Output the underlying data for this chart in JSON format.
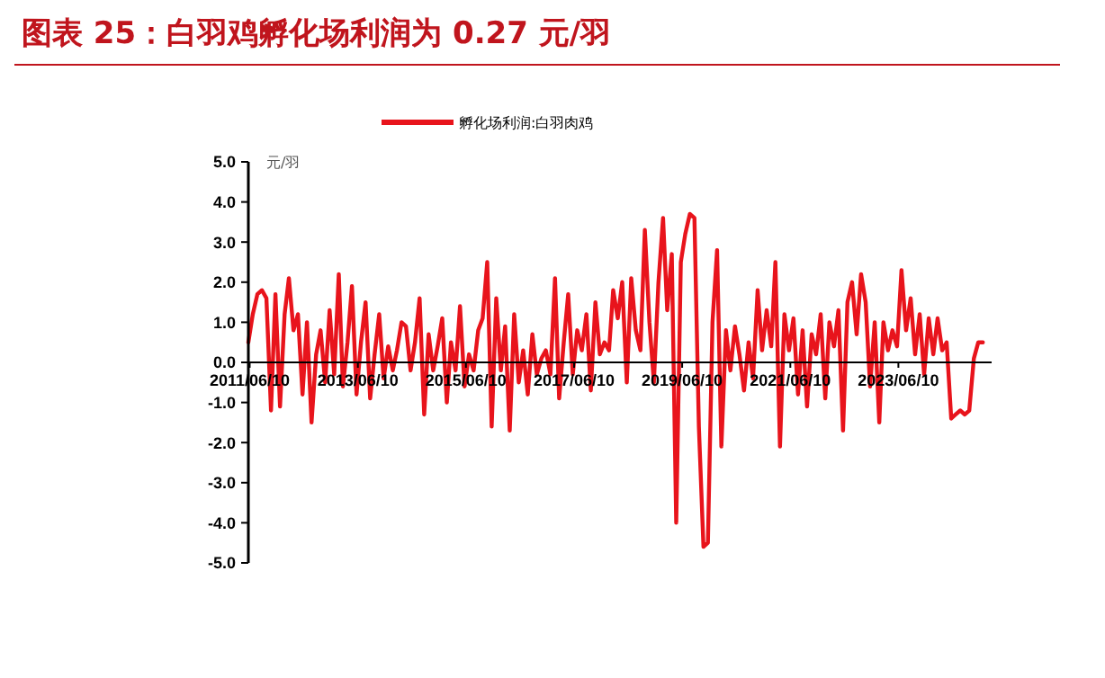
{
  "chart_data": {
    "type": "line",
    "title": "图表 25：白羽鸡孵化场利润为 0.27 元/羽",
    "ylabel": "元/羽",
    "legend": "top",
    "grid": false,
    "marker": "none",
    "line_style": "solid",
    "xlim": [
      "2011-06-01",
      "2025-03-01"
    ],
    "xticks": [
      {
        "value": "2011-06-10",
        "label": "2011/06/10"
      },
      {
        "value": "2013-06-10",
        "label": "2013/06/10"
      },
      {
        "value": "2015-06-10",
        "label": "2015/06/10"
      },
      {
        "value": "2017-06-10",
        "label": "2017/06/10"
      },
      {
        "value": "2019-06-10",
        "label": "2019/06/10"
      },
      {
        "value": "2021-06-10",
        "label": "2021/06/10"
      },
      {
        "value": "2023-06-10",
        "label": "2023/06/10"
      }
    ],
    "ylim": [
      -5,
      5
    ],
    "yticks": [
      {
        "value": 5,
        "label": "5.0"
      },
      {
        "value": 4,
        "label": "4.0"
      },
      {
        "value": 3,
        "label": "3.0"
      },
      {
        "value": 2,
        "label": "2.0"
      },
      {
        "value": 1,
        "label": "1.0"
      },
      {
        "value": 0,
        "label": "0.0"
      },
      {
        "value": -1,
        "label": "-1.0"
      },
      {
        "value": -2,
        "label": "-2.0"
      },
      {
        "value": -3,
        "label": "-3.0"
      },
      {
        "value": -4,
        "label": "-4.0"
      },
      {
        "value": -5,
        "label": "-5.0"
      }
    ],
    "x": [
      "2011-06",
      "2011-07",
      "2011-08",
      "2011-09",
      "2011-10",
      "2011-11",
      "2011-12",
      "2012-01",
      "2012-02",
      "2012-03",
      "2012-04",
      "2012-05",
      "2012-06",
      "2012-07",
      "2012-08",
      "2012-09",
      "2012-10",
      "2012-11",
      "2012-12",
      "2013-01",
      "2013-02",
      "2013-03",
      "2013-04",
      "2013-05",
      "2013-06",
      "2013-07",
      "2013-08",
      "2013-09",
      "2013-10",
      "2013-11",
      "2013-12",
      "2014-01",
      "2014-02",
      "2014-03",
      "2014-04",
      "2014-05",
      "2014-06",
      "2014-07",
      "2014-08",
      "2014-09",
      "2014-10",
      "2014-11",
      "2014-12",
      "2015-01",
      "2015-02",
      "2015-03",
      "2015-04",
      "2015-05",
      "2015-06",
      "2015-07",
      "2015-08",
      "2015-09",
      "2015-10",
      "2015-11",
      "2015-12",
      "2016-01",
      "2016-02",
      "2016-03",
      "2016-04",
      "2016-05",
      "2016-06",
      "2016-07",
      "2016-08",
      "2016-09",
      "2016-10",
      "2016-11",
      "2016-12",
      "2017-01",
      "2017-02",
      "2017-03",
      "2017-04",
      "2017-05",
      "2017-06",
      "2017-07",
      "2017-08",
      "2017-09",
      "2017-10",
      "2017-11",
      "2017-12",
      "2018-01",
      "2018-02",
      "2018-03",
      "2018-04",
      "2018-05",
      "2018-06",
      "2018-07",
      "2018-08",
      "2018-09",
      "2018-10",
      "2018-11",
      "2018-12",
      "2019-01",
      "2019-02",
      "2019-03",
      "2019-04",
      "2019-05",
      "2019-06",
      "2019-07",
      "2019-08",
      "2019-09",
      "2019-10",
      "2019-11",
      "2019-12",
      "2020-01",
      "2020-02",
      "2020-03",
      "2020-04",
      "2020-05",
      "2020-06",
      "2020-07",
      "2020-08",
      "2020-09",
      "2020-10",
      "2020-11",
      "2020-12",
      "2021-01",
      "2021-02",
      "2021-03",
      "2021-04",
      "2021-05",
      "2021-06",
      "2021-07",
      "2021-08",
      "2021-09",
      "2021-10",
      "2021-11",
      "2021-12",
      "2022-01",
      "2022-02",
      "2022-03",
      "2022-04",
      "2022-05",
      "2022-06",
      "2022-07",
      "2022-08",
      "2022-09",
      "2022-10",
      "2022-11",
      "2022-12",
      "2023-01",
      "2023-02",
      "2023-03",
      "2023-04",
      "2023-05",
      "2023-06",
      "2023-07",
      "2023-08",
      "2023-09",
      "2023-10",
      "2023-11",
      "2023-12",
      "2024-01",
      "2024-02",
      "2024-03",
      "2024-04",
      "2024-05",
      "2024-06",
      "2024-07",
      "2024-08",
      "2024-09",
      "2024-10",
      "2024-11",
      "2024-12",
      "2025-01"
    ],
    "series": [
      {
        "name": "孵化场利润:白羽肉鸡",
        "color": "#e8141c",
        "values": [
          0.5,
          1.2,
          1.7,
          1.8,
          1.6,
          -1.2,
          1.7,
          -1.1,
          1.2,
          2.1,
          0.8,
          1.2,
          -0.8,
          1.0,
          -1.5,
          0.2,
          0.8,
          -0.5,
          1.3,
          -0.3,
          2.2,
          -0.6,
          0.5,
          1.9,
          -0.8,
          0.5,
          1.5,
          -0.9,
          0.2,
          1.2,
          -0.4,
          0.4,
          -0.2,
          0.3,
          1.0,
          0.9,
          -0.2,
          0.5,
          1.6,
          -1.3,
          0.7,
          -0.2,
          0.4,
          1.1,
          -1.0,
          0.5,
          -0.2,
          1.4,
          -0.6,
          0.2,
          -0.2,
          0.8,
          1.1,
          2.5,
          -1.6,
          1.6,
          -0.2,
          0.9,
          -1.7,
          1.2,
          -0.5,
          0.3,
          -0.8,
          0.7,
          -0.3,
          0.1,
          0.3,
          -0.3,
          2.1,
          -0.9,
          0.5,
          1.7,
          -0.3,
          0.8,
          0.3,
          1.2,
          -0.7,
          1.5,
          0.2,
          0.5,
          0.3,
          1.8,
          1.1,
          2.0,
          -0.5,
          2.1,
          0.8,
          0.3,
          3.3,
          1.0,
          -0.5,
          2.0,
          3.6,
          1.3,
          2.7,
          -4.0,
          2.5,
          3.2,
          3.7,
          3.6,
          -1.6,
          -4.6,
          -4.5,
          1.0,
          2.8,
          -2.1,
          0.8,
          -0.2,
          0.9,
          0.2,
          -0.7,
          0.5,
          -0.4,
          1.8,
          0.3,
          1.3,
          0.4,
          2.5,
          -2.1,
          1.2,
          0.3,
          1.1,
          -0.8,
          0.8,
          -1.1,
          0.7,
          0.2,
          1.2,
          -0.9,
          1.0,
          0.4,
          1.3,
          -1.7,
          1.5,
          2.0,
          0.7,
          2.2,
          1.5,
          -0.6,
          1.0,
          -1.5,
          1.0,
          0.3,
          0.8,
          0.4,
          2.3,
          0.8,
          1.6,
          0.2,
          1.2,
          -0.3,
          1.1,
          0.2,
          1.1,
          0.3,
          0.5,
          -1.4,
          -1.3,
          -1.2,
          -1.3,
          -1.2,
          0.1,
          0.5,
          0.5
        ]
      }
    ]
  }
}
